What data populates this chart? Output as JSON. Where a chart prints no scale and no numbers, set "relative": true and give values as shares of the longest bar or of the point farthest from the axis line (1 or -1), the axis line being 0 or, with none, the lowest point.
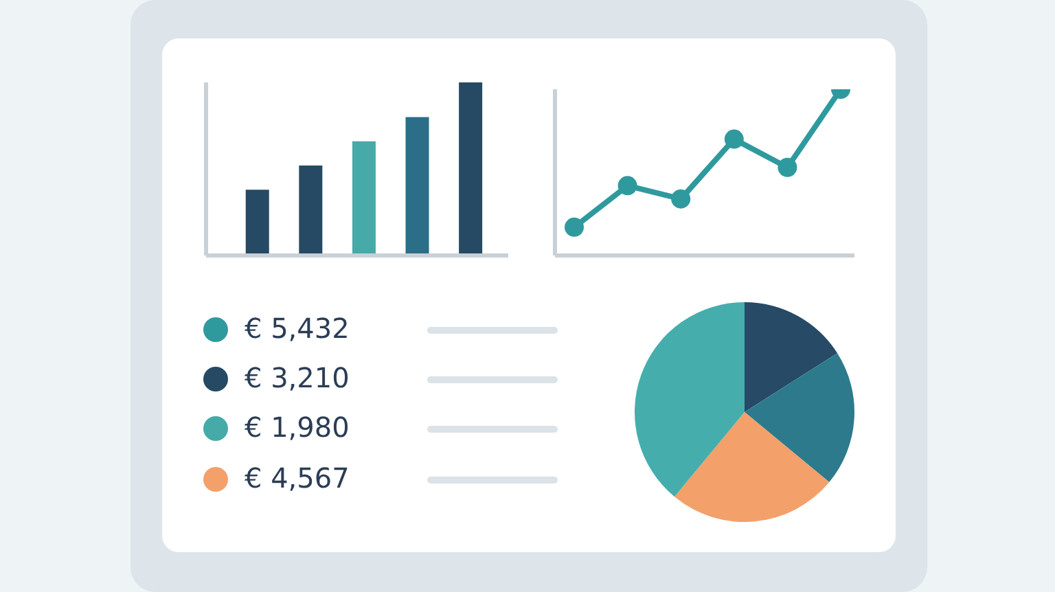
{
  "chart_data": [
    {
      "type": "bar",
      "relative": true,
      "categories": [
        null,
        null,
        null,
        null,
        null
      ],
      "values": [
        0.38,
        0.52,
        0.66,
        0.8,
        1
      ],
      "colors": [
        "#264a63",
        "#264a63",
        "#45aaa8",
        "#2a6e87",
        "#264a63"
      ]
    },
    {
      "type": "line",
      "relative": true,
      "categories": [
        null,
        null,
        null,
        null,
        null,
        null
      ],
      "values": [
        0.17,
        0.42,
        0.34,
        0.7,
        0.53,
        1
      ],
      "color": "#2f9a9e",
      "marker": "circle"
    },
    {
      "type": "other",
      "annotations": [
        "€ 5,432",
        "€ 3,210",
        "€ 1,980",
        "€ 4,567"
      ]
    },
    {
      "type": "pie",
      "categories": [
        null,
        null,
        null,
        null
      ],
      "values": [
        16,
        20,
        25,
        39
      ],
      "colors": [
        "#274a66",
        "#2d7a8c",
        "#f4a06a",
        "#45aeac"
      ]
    }
  ]
}
